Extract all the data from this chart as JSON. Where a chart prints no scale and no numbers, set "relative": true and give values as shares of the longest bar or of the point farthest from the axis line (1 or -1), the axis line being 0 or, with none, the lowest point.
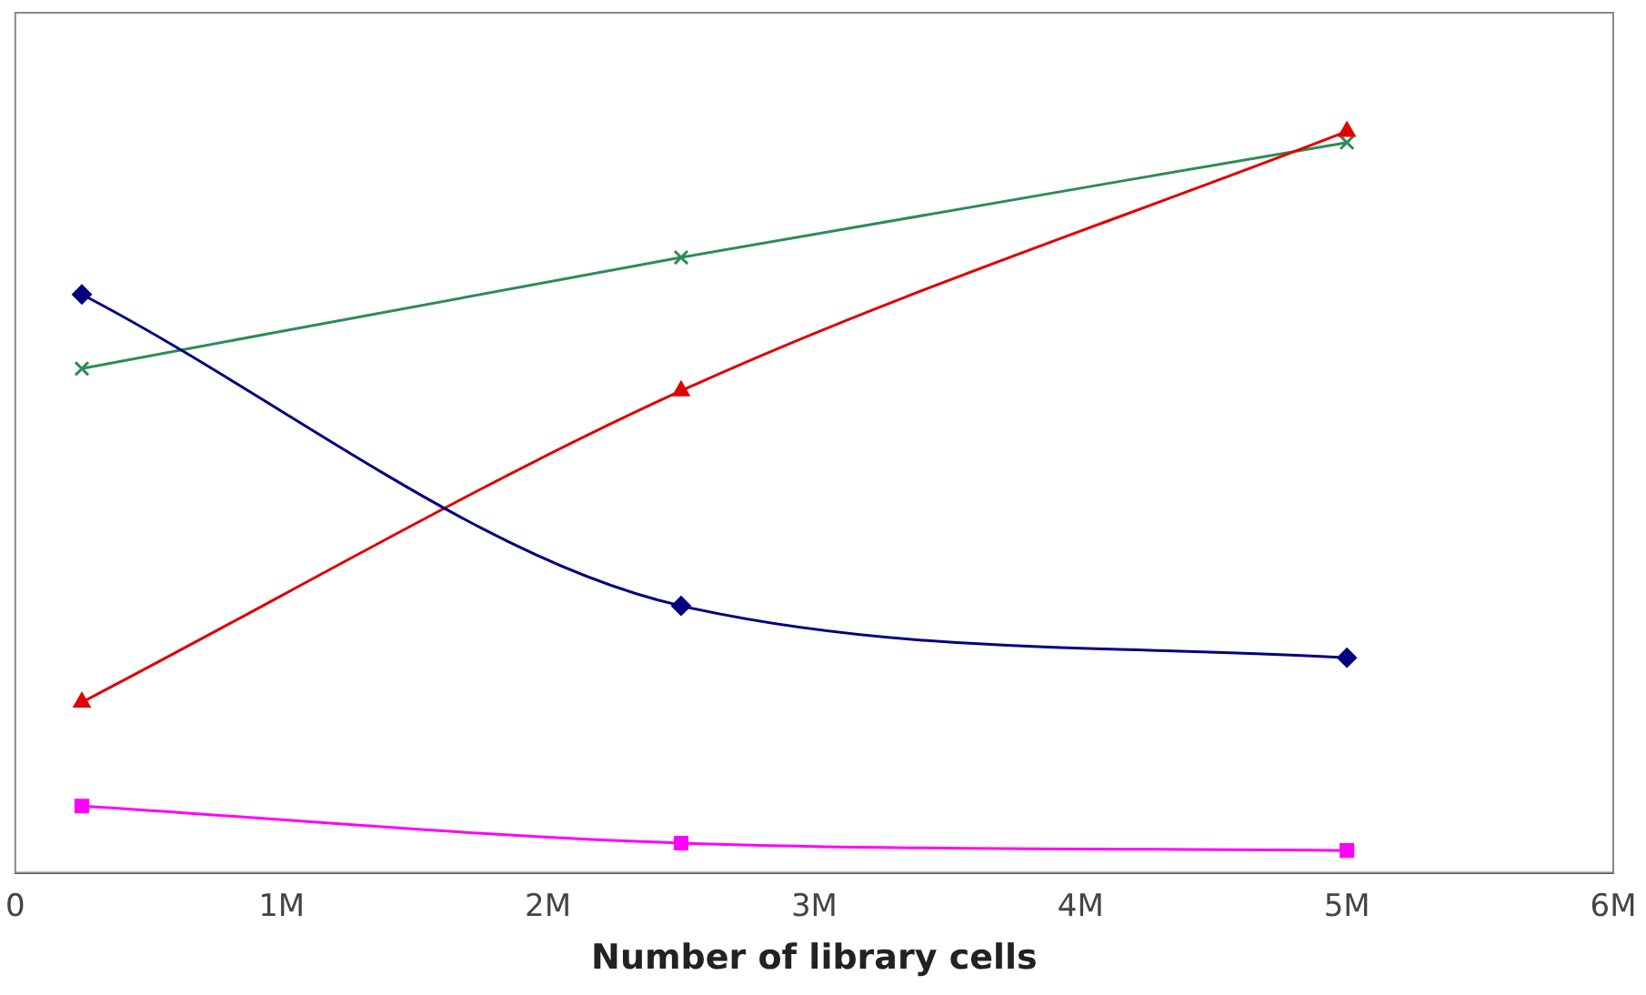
{
  "chart_data": {
    "type": "line",
    "xlabel": "Number of library cells",
    "relative": true,
    "grid": false,
    "legend": false,
    "tick_labels": "x",
    "xlim": [
      0,
      6000000
    ],
    "xticks": [
      0,
      {
        "value": 1000000,
        "label": "1M"
      },
      {
        "value": 2000000,
        "label": "2M"
      },
      {
        "value": 3000000,
        "label": "3M"
      },
      {
        "value": 4000000,
        "label": "4M"
      },
      {
        "value": 5000000,
        "label": "5M"
      },
      {
        "value": 6000000,
        "label": "6M"
      }
    ],
    "x": [
      250000,
      2500000,
      5000000
    ],
    "series": [
      {
        "color": "#000080",
        "marker": "diamond",
        "values": [
          0.78,
          0.36,
          0.29
        ]
      },
      {
        "color": "#e00000",
        "marker": "triangle",
        "values": [
          0.23,
          0.65,
          1.0
        ]
      },
      {
        "color": "#2e8b57",
        "marker": "cross",
        "values": [
          0.68,
          0.83,
          0.985
        ]
      },
      {
        "color": "#ff00ff",
        "marker": "square",
        "values": [
          0.09,
          0.04,
          0.03
        ]
      }
    ]
  }
}
